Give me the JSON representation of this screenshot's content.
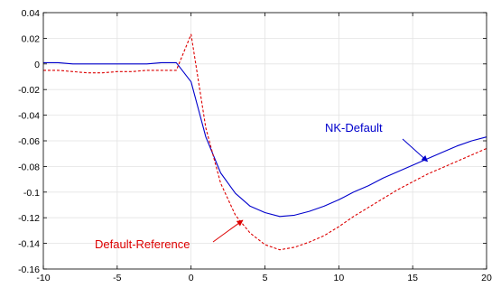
{
  "chart_data": {
    "type": "line",
    "title": "",
    "xlabel": "",
    "ylabel": "",
    "xlim": [
      -10,
      20
    ],
    "ylim": [
      -0.16,
      0.04
    ],
    "xticks": [
      -10,
      -5,
      0,
      5,
      10,
      15,
      20
    ],
    "yticks": [
      0.04,
      0.02,
      0,
      -0.02,
      -0.04,
      -0.06,
      -0.08,
      -0.1,
      -0.12,
      -0.14,
      -0.16
    ],
    "xtick_labels": [
      "-10",
      "-5",
      "0",
      "5",
      "10",
      "15",
      "20"
    ],
    "ytick_labels": [
      "0.04",
      "0.02",
      "0",
      "-0.02",
      "-0.04",
      "-0.06",
      "-0.08",
      "-0.1",
      "-0.12",
      "-0.14",
      "-0.16"
    ],
    "grid": true,
    "series": [
      {
        "name": "NK-Default",
        "color": "#0000cc",
        "style": "solid",
        "x": [
          -10,
          -9,
          -8,
          -7,
          -6,
          -5,
          -4,
          -3,
          -2,
          -1,
          0,
          1,
          2,
          3,
          4,
          5,
          6,
          7,
          8,
          9,
          10,
          11,
          12,
          13,
          14,
          15,
          16,
          17,
          18,
          19,
          20
        ],
        "y": [
          0.001,
          0.001,
          0.0,
          0.0,
          0.0,
          0.0,
          0.0,
          0.0,
          0.001,
          0.001,
          -0.014,
          -0.057,
          -0.085,
          -0.101,
          -0.111,
          -0.116,
          -0.119,
          -0.118,
          -0.115,
          -0.111,
          -0.106,
          -0.1,
          -0.095,
          -0.089,
          -0.084,
          -0.079,
          -0.074,
          -0.069,
          -0.064,
          -0.06,
          -0.057
        ]
      },
      {
        "name": "Default-Reference",
        "color": "#dd0000",
        "style": "dashed",
        "x": [
          -10,
          -9,
          -8,
          -7,
          -6,
          -5,
          -4,
          -3,
          -2,
          -1,
          0,
          1,
          2,
          3,
          4,
          5,
          6,
          7,
          8,
          9,
          10,
          11,
          12,
          13,
          14,
          15,
          16,
          17,
          18,
          19,
          20
        ],
        "y": [
          -0.005,
          -0.005,
          -0.006,
          -0.007,
          -0.007,
          -0.006,
          -0.006,
          -0.005,
          -0.005,
          -0.005,
          0.023,
          -0.05,
          -0.093,
          -0.118,
          -0.132,
          -0.141,
          -0.145,
          -0.143,
          -0.139,
          -0.134,
          -0.127,
          -0.119,
          -0.112,
          -0.105,
          -0.098,
          -0.092,
          -0.086,
          -0.081,
          -0.076,
          -0.071,
          -0.066
        ]
      }
    ],
    "annotations": [
      {
        "text": "NK-Default",
        "color": "#0000cc",
        "arrow_to": [
          16,
          -0.076
        ]
      },
      {
        "text": "Default-Reference",
        "color": "#dd0000",
        "arrow_to": [
          3.5,
          -0.122
        ]
      }
    ]
  }
}
